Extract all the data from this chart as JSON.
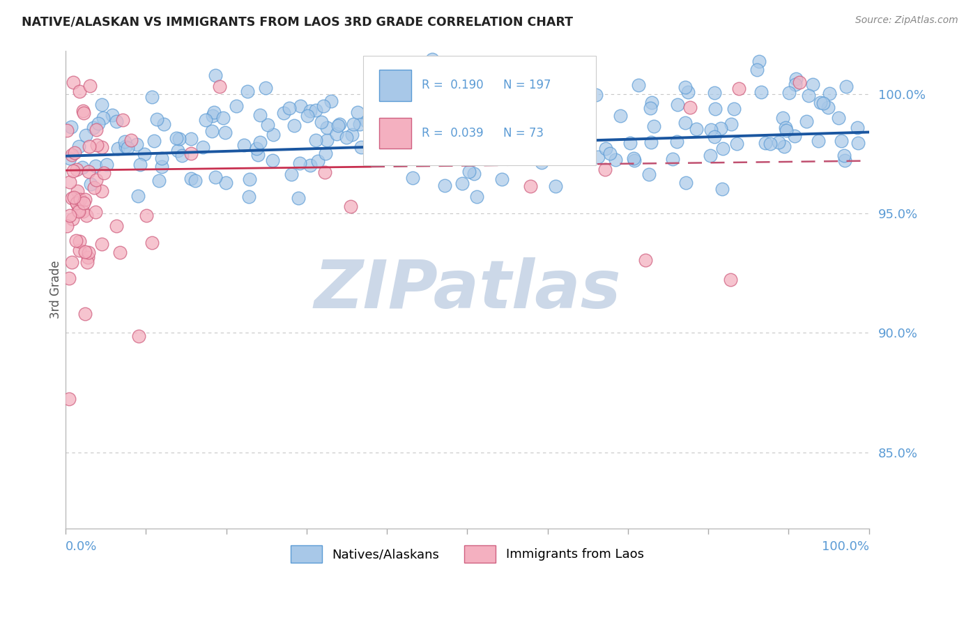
{
  "title": "NATIVE/ALASKAN VS IMMIGRANTS FROM LAOS 3RD GRADE CORRELATION CHART",
  "source": "Source: ZipAtlas.com",
  "ylabel": "3rd Grade",
  "yaxis_labels": [
    "85.0%",
    "90.0%",
    "95.0%",
    "100.0%"
  ],
  "yaxis_values": [
    0.85,
    0.9,
    0.95,
    1.0
  ],
  "xlim": [
    0.0,
    1.0
  ],
  "ylim": [
    0.818,
    1.018
  ],
  "legend_label_blue": "Natives/Alaskans",
  "legend_label_pink": "Immigrants from Laos",
  "R_blue": 0.19,
  "N_blue": 197,
  "R_pink": 0.039,
  "N_pink": 73,
  "blue_color": "#a8c8e8",
  "blue_edge": "#5b9bd5",
  "pink_color": "#f4b0c0",
  "pink_edge": "#d06080",
  "trend_blue_color": "#1a56a0",
  "trend_pink_color": "#c83050",
  "trend_pink_dash_color": "#c05070",
  "watermark_text": "ZIPatlas",
  "watermark_color": "#ccd8e8",
  "grid_color": "#c8c8c8",
  "title_color": "#222222",
  "source_color": "#888888",
  "axis_label_color": "#5b9bd5",
  "ylabel_color": "#555555",
  "seed_blue": 42,
  "seed_pink": 99
}
